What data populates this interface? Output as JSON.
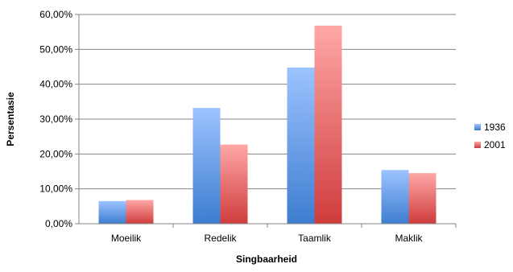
{
  "chart_data": {
    "type": "bar",
    "title": "",
    "xlabel": "Singbaarheid",
    "ylabel": "Persentasie",
    "categories": [
      "Moeilik",
      "Redelik",
      "Taamlik",
      "Maklik"
    ],
    "series": [
      {
        "name": "1936",
        "values": [
          6.5,
          33.2,
          44.8,
          15.4
        ],
        "color_top": "#9dc3ff",
        "color_bottom": "#3d7dd0"
      },
      {
        "name": "2001",
        "values": [
          6.8,
          22.7,
          56.8,
          14.5
        ],
        "color_top": "#ffa7a7",
        "color_bottom": "#cf3c3c"
      }
    ],
    "ylim": [
      0,
      60
    ],
    "yticks": [
      "0,00%",
      "10,00%",
      "20,00%",
      "30,00%",
      "40,00%",
      "50,00%",
      "60,00%"
    ],
    "grid": true,
    "legend_position": "right"
  }
}
